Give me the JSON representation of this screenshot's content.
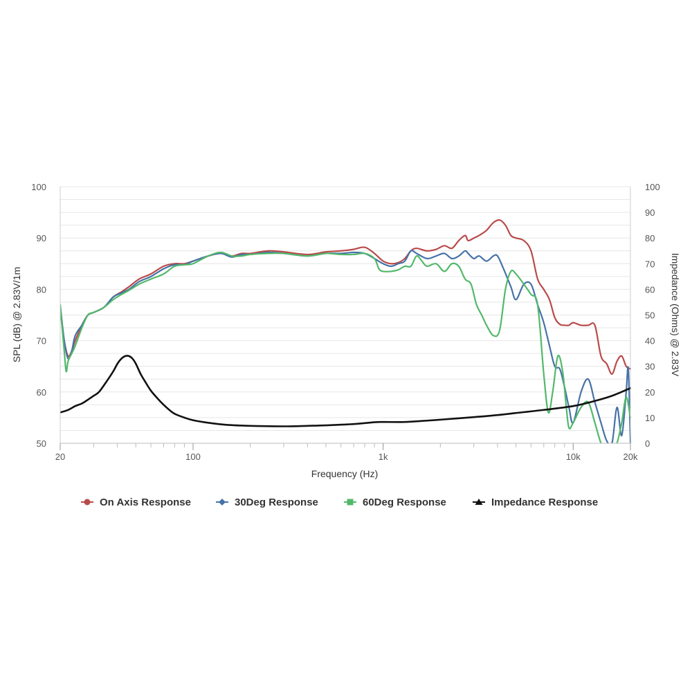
{
  "chart_data": {
    "type": "line",
    "xlabel": "Frequency (Hz)",
    "ylabel": "SPL (dB) @ 2.83V/1m",
    "y2label": "Impedance (Ohms) @ 2.83V",
    "x_scale": "log",
    "xlim": [
      20,
      20000
    ],
    "ylim": [
      50,
      100
    ],
    "y2lim": [
      0,
      100
    ],
    "x_ticks": [
      {
        "value": 20,
        "label": "20"
      },
      {
        "value": 100,
        "label": "100"
      },
      {
        "value": 1000,
        "label": "1k"
      },
      {
        "value": 10000,
        "label": "10k"
      },
      {
        "value": 20000,
        "label": "20k"
      }
    ],
    "y_ticks": [
      {
        "value": 50,
        "label": "50"
      },
      {
        "value": 60,
        "label": "60"
      },
      {
        "value": 70,
        "label": "70"
      },
      {
        "value": 80,
        "label": "80"
      },
      {
        "value": 90,
        "label": "90"
      },
      {
        "value": 100,
        "label": "100"
      }
    ],
    "y2_ticks": [
      {
        "value": 0,
        "label": "0"
      },
      {
        "value": 10,
        "label": "10"
      },
      {
        "value": 20,
        "label": "20"
      },
      {
        "value": 30,
        "label": "30"
      },
      {
        "value": 40,
        "label": "40"
      },
      {
        "value": 50,
        "label": "50"
      },
      {
        "value": 60,
        "label": "60"
      },
      {
        "value": 70,
        "label": "70"
      },
      {
        "value": 80,
        "label": "80"
      },
      {
        "value": 90,
        "label": "90"
      },
      {
        "value": 100,
        "label": "100"
      }
    ],
    "grid": true,
    "legend_position": "bottom",
    "series": [
      {
        "name": "On Axis Response",
        "axis": "left",
        "color": "#b94a4a",
        "marker": "circle",
        "points": [
          [
            20,
            76
          ],
          [
            21,
            70
          ],
          [
            22,
            67
          ],
          [
            23,
            68
          ],
          [
            24,
            70
          ],
          [
            26,
            73
          ],
          [
            28,
            75
          ],
          [
            30,
            75.5
          ],
          [
            34,
            76.5
          ],
          [
            38,
            78.5
          ],
          [
            42,
            79.5
          ],
          [
            46,
            80.5
          ],
          [
            52,
            82
          ],
          [
            60,
            83
          ],
          [
            70,
            84.5
          ],
          [
            80,
            85
          ],
          [
            90,
            85
          ],
          [
            100,
            85.5
          ],
          [
            120,
            86.5
          ],
          [
            140,
            87
          ],
          [
            160,
            86.5
          ],
          [
            180,
            87
          ],
          [
            200,
            87
          ],
          [
            250,
            87.5
          ],
          [
            300,
            87.3
          ],
          [
            400,
            86.8
          ],
          [
            500,
            87.3
          ],
          [
            600,
            87.5
          ],
          [
            700,
            87.8
          ],
          [
            800,
            88.2
          ],
          [
            900,
            87
          ],
          [
            1000,
            85.5
          ],
          [
            1100,
            85
          ],
          [
            1200,
            85.2
          ],
          [
            1300,
            86
          ],
          [
            1400,
            87.5
          ],
          [
            1500,
            88
          ],
          [
            1700,
            87.5
          ],
          [
            1900,
            87.8
          ],
          [
            2100,
            88.5
          ],
          [
            2300,
            88
          ],
          [
            2500,
            89.5
          ],
          [
            2700,
            90.5
          ],
          [
            2800,
            89.5
          ],
          [
            3000,
            90
          ],
          [
            3200,
            90.5
          ],
          [
            3500,
            91.5
          ],
          [
            3800,
            93
          ],
          [
            4100,
            93.5
          ],
          [
            4400,
            92.5
          ],
          [
            4700,
            90.5
          ],
          [
            5000,
            90
          ],
          [
            5500,
            89.5
          ],
          [
            6000,
            87.5
          ],
          [
            6500,
            82
          ],
          [
            7000,
            80
          ],
          [
            7500,
            78
          ],
          [
            8000,
            74.5
          ],
          [
            8500,
            73.2
          ],
          [
            9000,
            73
          ],
          [
            9500,
            73
          ],
          [
            10000,
            73.5
          ],
          [
            11000,
            73
          ],
          [
            12000,
            73
          ],
          [
            13000,
            73
          ],
          [
            14000,
            67
          ],
          [
            15000,
            65.5
          ],
          [
            16000,
            63.5
          ],
          [
            17000,
            66
          ],
          [
            18000,
            67
          ],
          [
            19000,
            65
          ],
          [
            20000,
            64.5
          ]
        ]
      },
      {
        "name": "30Deg Response",
        "axis": "left",
        "color": "#4572a7",
        "marker": "diamond",
        "points": [
          [
            20,
            77
          ],
          [
            21,
            70
          ],
          [
            22,
            66.5
          ],
          [
            23,
            68
          ],
          [
            24,
            71
          ],
          [
            26,
            73
          ],
          [
            28,
            75
          ],
          [
            30,
            75.5
          ],
          [
            34,
            76.5
          ],
          [
            38,
            78.5
          ],
          [
            42,
            79.3
          ],
          [
            46,
            80
          ],
          [
            52,
            81.5
          ],
          [
            60,
            82.5
          ],
          [
            70,
            84
          ],
          [
            80,
            84.8
          ],
          [
            90,
            84.8
          ],
          [
            100,
            85.5
          ],
          [
            120,
            86.5
          ],
          [
            140,
            87
          ],
          [
            160,
            86.3
          ],
          [
            180,
            86.8
          ],
          [
            200,
            86.8
          ],
          [
            250,
            87.2
          ],
          [
            300,
            87
          ],
          [
            400,
            86.5
          ],
          [
            500,
            87
          ],
          [
            600,
            87
          ],
          [
            700,
            87.2
          ],
          [
            800,
            87
          ],
          [
            900,
            86
          ],
          [
            1000,
            85
          ],
          [
            1100,
            84.5
          ],
          [
            1200,
            85
          ],
          [
            1300,
            85.5
          ],
          [
            1400,
            87.5
          ],
          [
            1500,
            87
          ],
          [
            1700,
            86
          ],
          [
            1900,
            86.5
          ],
          [
            2100,
            87
          ],
          [
            2300,
            86
          ],
          [
            2500,
            86.5
          ],
          [
            2700,
            87.5
          ],
          [
            2800,
            87
          ],
          [
            3000,
            86
          ],
          [
            3200,
            86.5
          ],
          [
            3500,
            85.5
          ],
          [
            3800,
            86.5
          ],
          [
            4000,
            86.5
          ],
          [
            4300,
            84
          ],
          [
            4700,
            80.5
          ],
          [
            5000,
            78
          ],
          [
            5500,
            81
          ],
          [
            6000,
            81
          ],
          [
            6500,
            77
          ],
          [
            7000,
            73.5
          ],
          [
            7500,
            69
          ],
          [
            8000,
            65
          ],
          [
            8500,
            64.5
          ],
          [
            9000,
            61
          ],
          [
            9500,
            57
          ],
          [
            10000,
            54
          ],
          [
            11000,
            60
          ],
          [
            12000,
            62.5
          ],
          [
            13000,
            58
          ],
          [
            14000,
            54
          ],
          [
            15000,
            50.5
          ],
          [
            16000,
            50
          ],
          [
            17000,
            57
          ],
          [
            18000,
            51.5
          ],
          [
            19000,
            60
          ],
          [
            19500,
            64.5
          ],
          [
            20000,
            50
          ]
        ]
      },
      {
        "name": "60Deg Response",
        "axis": "left",
        "color": "#52b86a",
        "marker": "square",
        "points": [
          [
            20,
            77
          ],
          [
            21,
            68
          ],
          [
            21.5,
            64
          ],
          [
            22,
            66
          ],
          [
            23,
            67.5
          ],
          [
            24,
            69
          ],
          [
            26,
            72.5
          ],
          [
            28,
            75
          ],
          [
            30,
            75.5
          ],
          [
            34,
            76.5
          ],
          [
            38,
            78
          ],
          [
            42,
            79
          ],
          [
            46,
            79.8
          ],
          [
            52,
            81
          ],
          [
            60,
            82
          ],
          [
            70,
            83
          ],
          [
            80,
            84.5
          ],
          [
            90,
            84.8
          ],
          [
            100,
            85
          ],
          [
            120,
            86.5
          ],
          [
            140,
            87.2
          ],
          [
            160,
            86.5
          ],
          [
            180,
            86.5
          ],
          [
            200,
            86.8
          ],
          [
            250,
            87
          ],
          [
            300,
            87
          ],
          [
            400,
            86.5
          ],
          [
            500,
            87
          ],
          [
            600,
            86.8
          ],
          [
            700,
            86.8
          ],
          [
            800,
            87
          ],
          [
            900,
            86
          ],
          [
            950,
            84
          ],
          [
            1000,
            83.5
          ],
          [
            1100,
            83.5
          ],
          [
            1200,
            83.8
          ],
          [
            1300,
            84.5
          ],
          [
            1400,
            84.5
          ],
          [
            1500,
            86.5
          ],
          [
            1600,
            85.5
          ],
          [
            1700,
            84.5
          ],
          [
            1900,
            85
          ],
          [
            2100,
            83.5
          ],
          [
            2300,
            85
          ],
          [
            2500,
            84.5
          ],
          [
            2700,
            82
          ],
          [
            2900,
            81
          ],
          [
            3100,
            77
          ],
          [
            3300,
            75
          ],
          [
            3500,
            73
          ],
          [
            3800,
            71
          ],
          [
            4100,
            72
          ],
          [
            4400,
            80
          ],
          [
            4700,
            83.5
          ],
          [
            5000,
            83
          ],
          [
            5500,
            81
          ],
          [
            6000,
            79
          ],
          [
            6500,
            77
          ],
          [
            7000,
            63.5
          ],
          [
            7400,
            56
          ],
          [
            7800,
            60
          ],
          [
            8300,
            67
          ],
          [
            8800,
            64
          ],
          [
            9200,
            57
          ],
          [
            9500,
            53
          ],
          [
            10000,
            54
          ],
          [
            11000,
            57
          ],
          [
            12000,
            58
          ],
          [
            13000,
            54
          ],
          [
            14000,
            50
          ],
          [
            15000,
            48
          ],
          [
            16000,
            48
          ],
          [
            17000,
            50
          ],
          [
            18000,
            54
          ],
          [
            19000,
            59
          ],
          [
            20000,
            55
          ]
        ]
      },
      {
        "name": "Impedance Response",
        "axis": "right",
        "color": "#111111",
        "marker": "triangle",
        "points": [
          [
            20,
            12
          ],
          [
            22,
            13
          ],
          [
            24,
            14.5
          ],
          [
            26,
            15.5
          ],
          [
            28,
            17
          ],
          [
            30,
            18.5
          ],
          [
            32,
            20
          ],
          [
            35,
            24
          ],
          [
            38,
            28
          ],
          [
            40,
            31
          ],
          [
            42,
            33
          ],
          [
            44,
            34
          ],
          [
            46,
            34
          ],
          [
            48,
            33
          ],
          [
            50,
            31
          ],
          [
            53,
            27
          ],
          [
            56,
            24
          ],
          [
            60,
            20.5
          ],
          [
            65,
            17.5
          ],
          [
            70,
            15
          ],
          [
            75,
            13
          ],
          [
            80,
            11.5
          ],
          [
            90,
            10
          ],
          [
            100,
            9
          ],
          [
            120,
            8
          ],
          [
            150,
            7.2
          ],
          [
            200,
            6.8
          ],
          [
            300,
            6.6
          ],
          [
            400,
            6.8
          ],
          [
            500,
            7
          ],
          [
            700,
            7.5
          ],
          [
            900,
            8.2
          ],
          [
            1000,
            8.3
          ],
          [
            1300,
            8.3
          ],
          [
            1600,
            8.7
          ],
          [
            2000,
            9.2
          ],
          [
            3000,
            10.2
          ],
          [
            4000,
            11
          ],
          [
            5000,
            11.8
          ],
          [
            7000,
            13
          ],
          [
            10000,
            14.5
          ],
          [
            13000,
            16.5
          ],
          [
            16000,
            18.5
          ],
          [
            20000,
            21.5
          ]
        ]
      }
    ]
  }
}
